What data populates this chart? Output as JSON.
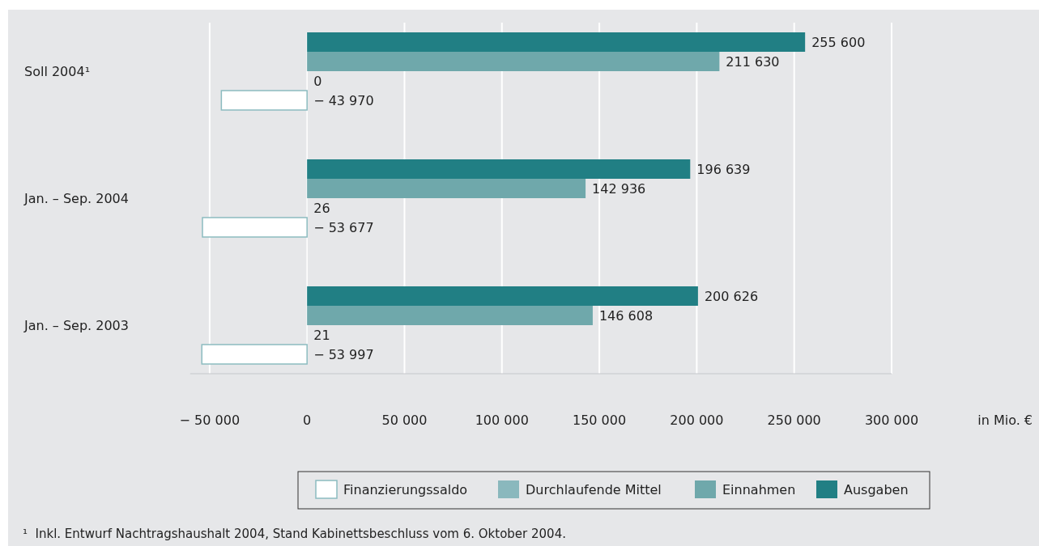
{
  "chart_data": {
    "type": "bar",
    "orientation": "horizontal",
    "categories": [
      "Soll 2004¹",
      "Jan. – Sep. 2004",
      "Jan. – Sep. 2003"
    ],
    "series": [
      {
        "name": "Finanzierungssaldo",
        "color": "#ffffff",
        "values": [
          -43970,
          -53677,
          -53997
        ]
      },
      {
        "name": "Durchlaufende Mittel",
        "color": "#8ab8bd",
        "values": [
          0,
          26,
          21
        ]
      },
      {
        "name": "Einnahmen",
        "color": "#6fa8ab",
        "values": [
          211630,
          142936,
          146608
        ]
      },
      {
        "name": "Ausgaben",
        "color": "#217f84",
        "values": [
          255600,
          196639,
          200626
        ]
      }
    ],
    "xlim": [
      -60000,
      300000
    ],
    "xticks": [
      {
        "value": -50000,
        "label": "− 50 000"
      },
      0,
      {
        "value": 50000,
        "label": "50 000"
      },
      {
        "value": 100000,
        "label": "100 000"
      },
      {
        "value": 150000,
        "label": "150 000"
      },
      {
        "value": 200000,
        "label": "200 000"
      },
      {
        "value": 250000,
        "label": "250 000"
      },
      {
        "value": 300000,
        "label": "300 000"
      }
    ],
    "xlabel": "in Mio. €",
    "grid": "x",
    "legend": "bottom",
    "data_labels": true,
    "annotations": [
      "¹  Inkl. Entwurf Nachtragshaushalt 2004, Stand Kabinettsbeschluss vom 6. Oktober 2004."
    ]
  }
}
